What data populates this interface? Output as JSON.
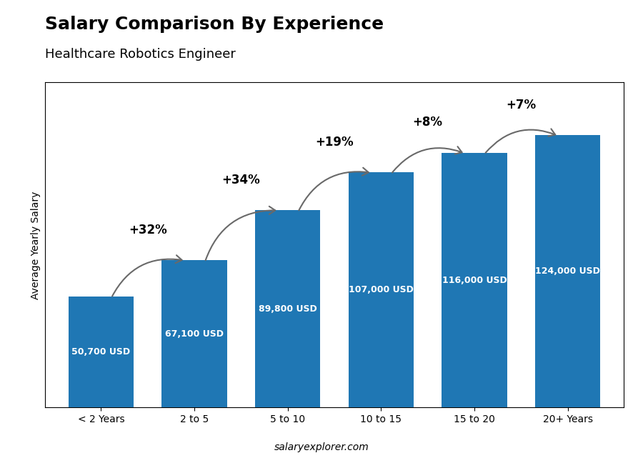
{
  "chart_data": {
    "type": "bar",
    "title": "Salary Comparison By Experience",
    "subtitle": "Healthcare Robotics Engineer",
    "categories": [
      "< 2 Years",
      "2 to 5",
      "5 to 10",
      "10 to 15",
      "15 to 20",
      "20+ Years"
    ],
    "values": [
      50700,
      67100,
      89800,
      107000,
      116000,
      124000
    ],
    "value_labels": [
      "50,700 USD",
      "67,100 USD",
      "89,800 USD",
      "107,000 USD",
      "116,000 USD",
      "124,000 USD"
    ],
    "data_labels": true,
    "annotations": [
      "+32%",
      "+34%",
      "+19%",
      "+8%",
      "+7%"
    ],
    "ylabel": "Average Yearly Salary",
    "footer": "salaryexplorer.com",
    "ylim": [
      0,
      148000
    ],
    "yticks": [],
    "tick_labels": "x"
  }
}
